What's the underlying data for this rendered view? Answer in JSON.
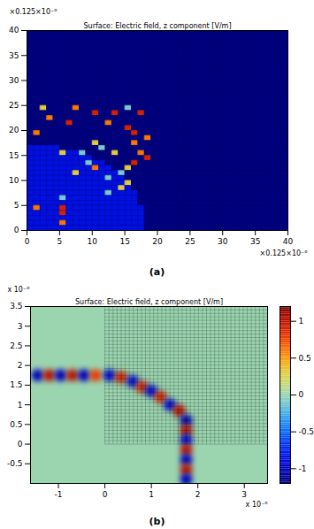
{
  "chart_data": [
    {
      "type": "heatmap",
      "panel_label": "(a)",
      "title": "Surface: Electric field, z component [V/m]",
      "x_multiplier": "×0.125×10⁻⁶",
      "y_multiplier": "×0.125×10⁻⁶",
      "xlim": [
        0,
        40
      ],
      "ylim": [
        0,
        40
      ],
      "xticks": [
        0,
        5,
        10,
        15,
        20,
        25,
        30,
        35,
        40
      ],
      "yticks": [
        0,
        5,
        10,
        15,
        20,
        25,
        30,
        35,
        40
      ],
      "lattice": {
        "x": [
          0,
          40
        ],
        "y": [
          0,
          40
        ],
        "divisions": 40
      },
      "color_range": [
        -1.2,
        1.2
      ],
      "background_value": -1.2,
      "region": {
        "value": -0.85,
        "row_extents": [
          18,
          18,
          18,
          18,
          18,
          17,
          17,
          17,
          16,
          16,
          15,
          14,
          13,
          12,
          10,
          8,
          5
        ]
      },
      "cells": [
        [
          2,
          24,
          0.3
        ],
        [
          7,
          24,
          0.6
        ],
        [
          10,
          23,
          0.9
        ],
        [
          13,
          23,
          0.9
        ],
        [
          15,
          24,
          -0.1
        ],
        [
          17,
          23,
          0.9
        ],
        [
          1,
          19,
          0.6
        ],
        [
          3,
          22,
          0.6
        ],
        [
          6,
          21,
          0.9
        ],
        [
          12,
          21,
          0.6
        ],
        [
          15,
          20,
          0.9
        ],
        [
          16,
          19,
          0.9
        ],
        [
          16,
          17,
          0.6
        ],
        [
          18,
          18,
          0.6
        ],
        [
          10,
          17,
          0.3
        ],
        [
          11,
          16,
          -0.1
        ],
        [
          5,
          15,
          0.3
        ],
        [
          8,
          15,
          -0.1
        ],
        [
          13,
          15,
          0.3
        ],
        [
          17,
          15,
          0.6
        ],
        [
          18,
          14,
          0.9
        ],
        [
          9,
          13,
          -0.1
        ],
        [
          10,
          12,
          0.6
        ],
        [
          14,
          11,
          -0.1
        ],
        [
          15,
          12,
          0.3
        ],
        [
          16,
          13,
          0.9
        ],
        [
          7,
          11,
          0.3
        ],
        [
          12,
          10,
          -0.1
        ],
        [
          15,
          9,
          0.3
        ],
        [
          1,
          4,
          0.6
        ],
        [
          5,
          6,
          -0.1
        ],
        [
          5,
          4,
          0.9
        ],
        [
          5,
          3,
          0.9
        ],
        [
          5,
          1,
          0.6
        ],
        [
          12,
          7,
          -0.1
        ],
        [
          14,
          8,
          0.3
        ]
      ]
    },
    {
      "type": "heatmap",
      "panel_label": "(b)",
      "title": "Surface: Electric field, z component [V/m]",
      "x_multiplier": "x 10⁻⁶",
      "y_multiplier": "x 10⁻⁶",
      "xlim": [
        -1.6,
        3.5
      ],
      "ylim": [
        -1,
        3.5
      ],
      "xticks": [
        -1,
        0,
        1,
        2,
        3
      ],
      "yticks": [
        -0.5,
        0,
        0.5,
        1,
        1.5,
        2,
        2.5,
        3,
        3.5
      ],
      "lattice": {
        "x": [
          0,
          3.5
        ],
        "y": [
          0,
          3.5
        ],
        "divisions": 40
      },
      "background_value": 0,
      "field_peaks": [
        [
          -1.45,
          1.75,
          -1
        ],
        [
          -1.2,
          1.75,
          1
        ],
        [
          -0.95,
          1.75,
          -1
        ],
        [
          -0.7,
          1.75,
          1
        ],
        [
          -0.45,
          1.75,
          -1
        ],
        [
          -0.2,
          1.75,
          0.8
        ],
        [
          0.1,
          1.75,
          -0.9
        ],
        [
          0.35,
          1.7,
          0.9
        ],
        [
          0.6,
          1.6,
          -0.9
        ],
        [
          0.8,
          1.45,
          0.9
        ],
        [
          1.0,
          1.35,
          -0.9
        ],
        [
          1.2,
          1.2,
          0.9
        ],
        [
          1.4,
          1.0,
          -0.9
        ],
        [
          1.6,
          0.85,
          1
        ],
        [
          1.75,
          0.6,
          -1
        ],
        [
          1.75,
          0.35,
          1
        ],
        [
          1.75,
          0.1,
          -0.9
        ],
        [
          1.75,
          -0.15,
          1
        ],
        [
          1.75,
          -0.4,
          -1
        ],
        [
          1.75,
          -0.65,
          1
        ],
        [
          1.75,
          -0.9,
          -1
        ]
      ],
      "colorbar": {
        "range": [
          -1.2,
          1.2
        ],
        "ticks": [
          -1,
          -0.5,
          0,
          0.5,
          1
        ]
      }
    }
  ]
}
